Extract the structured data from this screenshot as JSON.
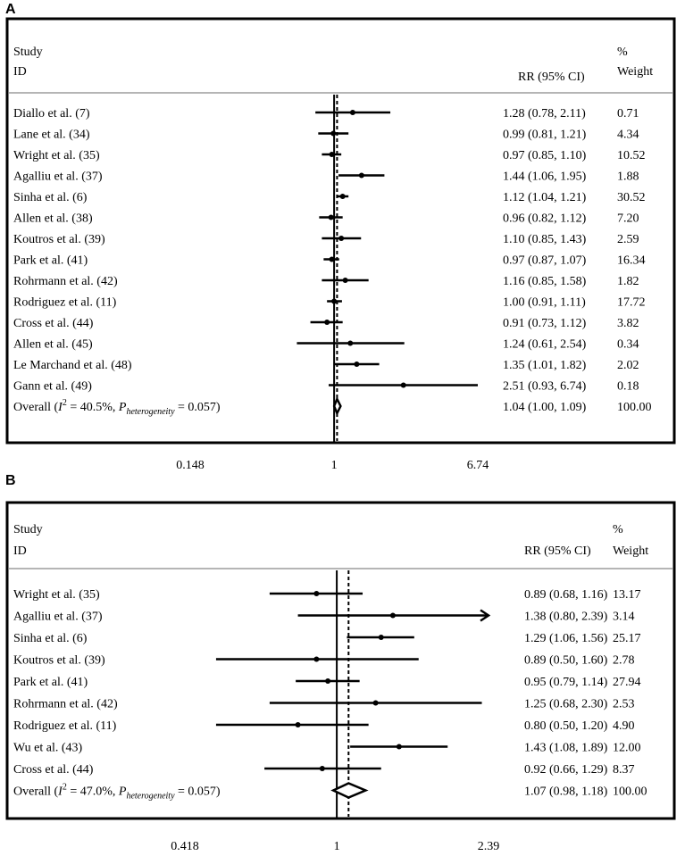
{
  "panels": [
    {
      "letter": "A",
      "header": {
        "study": "Study",
        "id": "ID",
        "rr": "RR (95% CI)",
        "pct": "%",
        "weight": "Weight"
      },
      "chart_data": {
        "type": "forest",
        "scale": "log",
        "xlim": [
          0.148,
          6.74
        ],
        "xticks": [
          "0.148",
          "1",
          "6.74"
        ],
        "null_value": 1,
        "pooled_value": 1.04,
        "studies": [
          {
            "label": "Diallo et al. (7)",
            "rr": 1.28,
            "lo": 0.78,
            "hi": 2.11,
            "ci_text": "1.28 (0.78, 2.11)",
            "weight": "0.71"
          },
          {
            "label": "Lane et al. (34)",
            "rr": 0.99,
            "lo": 0.81,
            "hi": 1.21,
            "ci_text": "0.99 (0.81, 1.21)",
            "weight": "4.34"
          },
          {
            "label": "Wright et al. (35)",
            "rr": 0.97,
            "lo": 0.85,
            "hi": 1.1,
            "ci_text": "0.97 (0.85, 1.10)",
            "weight": "10.52"
          },
          {
            "label": "Agalliu et al. (37)",
            "rr": 1.44,
            "lo": 1.06,
            "hi": 1.95,
            "ci_text": "1.44 (1.06, 1.95)",
            "weight": "1.88"
          },
          {
            "label": "Sinha et al. (6)",
            "rr": 1.12,
            "lo": 1.04,
            "hi": 1.21,
            "ci_text": "1.12 (1.04, 1.21)",
            "weight": "30.52"
          },
          {
            "label": "Allen et al. (38)",
            "rr": 0.96,
            "lo": 0.82,
            "hi": 1.12,
            "ci_text": "0.96 (0.82, 1.12)",
            "weight": "7.20"
          },
          {
            "label": "Koutros et al. (39)",
            "rr": 1.1,
            "lo": 0.85,
            "hi": 1.43,
            "ci_text": "1.10 (0.85, 1.43)",
            "weight": "2.59"
          },
          {
            "label": "Park et al. (41)",
            "rr": 0.97,
            "lo": 0.87,
            "hi": 1.07,
            "ci_text": "0.97 (0.87, 1.07)",
            "weight": "16.34"
          },
          {
            "label": "Rohrmann et al. (42)",
            "rr": 1.16,
            "lo": 0.85,
            "hi": 1.58,
            "ci_text": "1.16 (0.85, 1.58)",
            "weight": "1.82"
          },
          {
            "label": "Rodriguez et al. (11)",
            "rr": 1.0,
            "lo": 0.91,
            "hi": 1.11,
            "ci_text": "1.00 (0.91, 1.11)",
            "weight": "17.72"
          },
          {
            "label": "Cross et al. (44)",
            "rr": 0.91,
            "lo": 0.73,
            "hi": 1.12,
            "ci_text": "0.91 (0.73, 1.12)",
            "weight": "3.82"
          },
          {
            "label": "Allen et al. (45)",
            "rr": 1.24,
            "lo": 0.61,
            "hi": 2.54,
            "ci_text": "1.24 (0.61, 2.54)",
            "weight": "0.34"
          },
          {
            "label": "Le Marchand et al. (48)",
            "rr": 1.35,
            "lo": 1.01,
            "hi": 1.82,
            "ci_text": "1.35 (1.01, 1.82)",
            "weight": "2.02"
          },
          {
            "label": "Gann et al. (49)",
            "rr": 2.51,
            "lo": 0.93,
            "hi": 6.74,
            "ci_text": "2.51 (0.93, 6.74)",
            "weight": "0.18"
          }
        ],
        "overall": {
          "label_prefix": "Overall  (",
          "i2_symbol": "I",
          "i2_sup": "2",
          "i2_text": " = 40.5%, ",
          "p_symbol": "P",
          "p_sub": "heterogeneity",
          "p_text": " = 0.057)",
          "rr": 1.04,
          "lo": 1.0,
          "hi": 1.09,
          "ci_text": "1.04 (1.00, 1.09)",
          "weight": "100.00"
        }
      }
    },
    {
      "letter": "B",
      "header": {
        "study": "Study",
        "id": "ID",
        "rr": "RR (95% CI)",
        "pct": "%",
        "weight": "Weight"
      },
      "chart_data": {
        "type": "forest",
        "scale": "log",
        "xlim": [
          0.418,
          2.39
        ],
        "xticks": [
          "0.418",
          "1",
          "2.39"
        ],
        "null_value": 1,
        "pooled_value": 1.07,
        "studies": [
          {
            "label": "Wright et al. (35)",
            "rr": 0.89,
            "lo": 0.68,
            "hi": 1.16,
            "ci_text": "0.89 (0.68, 1.16)",
            "weight": "13.17"
          },
          {
            "label": "Agalliu et al. (37)",
            "rr": 1.38,
            "lo": 0.8,
            "hi": 2.39,
            "ci_text": "1.38 (0.80, 2.39)",
            "weight": "3.14",
            "arrow": true
          },
          {
            "label": "Sinha et al. (6)",
            "rr": 1.29,
            "lo": 1.06,
            "hi": 1.56,
            "ci_text": "1.29 (1.06, 1.56)",
            "weight": "25.17"
          },
          {
            "label": "Koutros et al. (39)",
            "rr": 0.89,
            "lo": 0.5,
            "hi": 1.6,
            "ci_text": "0.89 (0.50, 1.60)",
            "weight": "2.78"
          },
          {
            "label": "Park et al. (41)",
            "rr": 0.95,
            "lo": 0.79,
            "hi": 1.14,
            "ci_text": "0.95 (0.79, 1.14)",
            "weight": "27.94"
          },
          {
            "label": "Rohrmann et al. (42)",
            "rr": 1.25,
            "lo": 0.68,
            "hi": 2.3,
            "ci_text": "1.25 (0.68, 2.30)",
            "weight": "2.53"
          },
          {
            "label": "Rodriguez et al. (11)",
            "rr": 0.8,
            "lo": 0.5,
            "hi": 1.2,
            "ci_text": "0.80 (0.50, 1.20)",
            "weight": "4.90"
          },
          {
            "label": "Wu et al. (43)",
            "rr": 1.43,
            "lo": 1.08,
            "hi": 1.89,
            "ci_text": "1.43 (1.08, 1.89)",
            "weight": "12.00"
          },
          {
            "label": "Cross et al. (44)",
            "rr": 0.92,
            "lo": 0.66,
            "hi": 1.29,
            "ci_text": "0.92 (0.66, 1.29)",
            "weight": "8.37"
          }
        ],
        "overall": {
          "label_prefix": "Overall  (",
          "i2_symbol": "I",
          "i2_sup": "2",
          "i2_text": " = 47.0%, ",
          "p_symbol": "P",
          "p_sub": "heterogeneity",
          "p_text": " = 0.057)",
          "rr": 1.07,
          "lo": 0.98,
          "hi": 1.18,
          "ci_text": "1.07 (0.98, 1.18)",
          "weight": "100.00"
        }
      }
    }
  ]
}
